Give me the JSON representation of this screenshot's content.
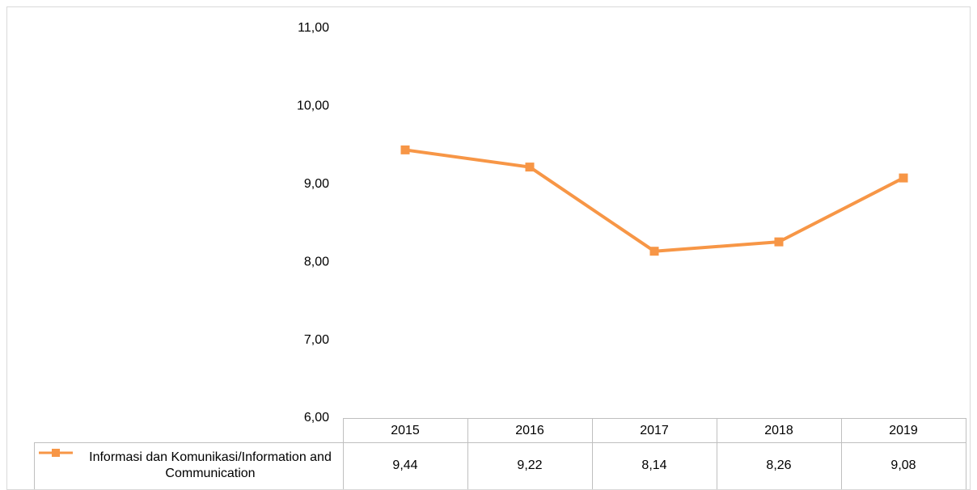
{
  "chart_data": {
    "type": "line",
    "categories": [
      "2015",
      "2016",
      "2017",
      "2018",
      "2019"
    ],
    "series": [
      {
        "name": "Informasi dan Komunikasi/Information and Communication",
        "color": "#f79646",
        "values": [
          9.44,
          9.22,
          8.14,
          8.26,
          9.08
        ],
        "value_labels": [
          "9,44",
          "9,22",
          "8,14",
          "8,26",
          "9,08"
        ]
      }
    ],
    "ylim": [
      6,
      11
    ],
    "yticks": [
      {
        "value": 6,
        "label": "6,00"
      },
      {
        "value": 7,
        "label": "7,00"
      },
      {
        "value": 8,
        "label": "8,00"
      },
      {
        "value": 9,
        "label": "9,00"
      },
      {
        "value": 10,
        "label": "10,00"
      },
      {
        "value": 11,
        "label": "11,00"
      }
    ],
    "grid": false
  }
}
